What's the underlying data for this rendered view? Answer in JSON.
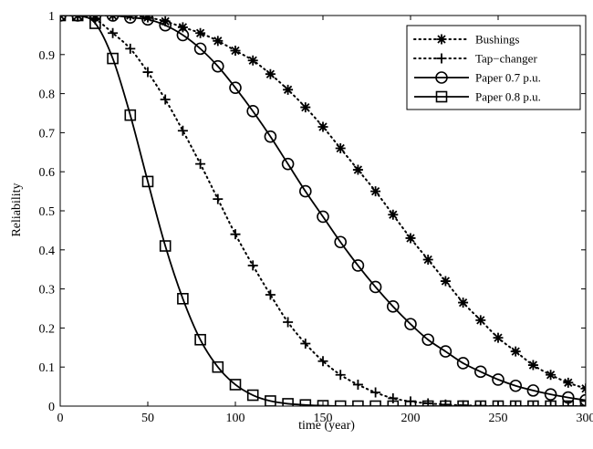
{
  "chart_data": {
    "type": "line",
    "xlabel": "time (year)",
    "ylabel": "Reliability",
    "xlim": [
      0,
      300
    ],
    "ylim": [
      0,
      1
    ],
    "x_ticks": [
      "0",
      "50",
      "100",
      "150",
      "200",
      "250",
      "300"
    ],
    "y_ticks": [
      "0",
      "0.1",
      "0.2",
      "0.3",
      "0.4",
      "0.5",
      "0.6",
      "0.7",
      "0.8",
      "0.9",
      "1"
    ],
    "grid": false,
    "legend_position": "top-right",
    "x": [
      0,
      10,
      20,
      30,
      40,
      50,
      60,
      70,
      80,
      90,
      100,
      110,
      120,
      130,
      140,
      150,
      160,
      170,
      180,
      190,
      200,
      210,
      220,
      230,
      240,
      250,
      260,
      270,
      280,
      290,
      300
    ],
    "series": [
      {
        "name": "Bushings",
        "line_style": "dotted",
        "marker": "asterisk",
        "values": [
          1.0,
          1.0,
          1.0,
          1.0,
          1.0,
          0.995,
          0.985,
          0.97,
          0.955,
          0.935,
          0.91,
          0.885,
          0.85,
          0.81,
          0.765,
          0.715,
          0.66,
          0.605,
          0.55,
          0.49,
          0.43,
          0.375,
          0.32,
          0.265,
          0.22,
          0.175,
          0.14,
          0.105,
          0.08,
          0.06,
          0.045
        ]
      },
      {
        "name": "Tap−changer",
        "line_style": "dotted",
        "marker": "plus",
        "values": [
          1.0,
          1.0,
          0.99,
          0.955,
          0.915,
          0.855,
          0.785,
          0.705,
          0.62,
          0.53,
          0.44,
          0.36,
          0.285,
          0.215,
          0.16,
          0.115,
          0.08,
          0.055,
          0.035,
          0.02,
          0.012,
          0.007,
          0.004,
          0.002,
          0.001,
          0.0,
          0.0,
          0.0,
          0.0,
          0.0,
          0.0
        ]
      },
      {
        "name": "Paper 0.7 p.u.",
        "line_style": "solid",
        "marker": "circle",
        "values": [
          1.0,
          1.0,
          1.0,
          1.0,
          0.995,
          0.99,
          0.975,
          0.95,
          0.915,
          0.87,
          0.815,
          0.755,
          0.69,
          0.62,
          0.55,
          0.485,
          0.42,
          0.36,
          0.305,
          0.255,
          0.21,
          0.17,
          0.14,
          0.11,
          0.088,
          0.068,
          0.052,
          0.04,
          0.03,
          0.022,
          0.015
        ]
      },
      {
        "name": "Paper 0.8 p.u.",
        "line_style": "solid",
        "marker": "square",
        "values": [
          1.0,
          1.0,
          0.98,
          0.89,
          0.745,
          0.575,
          0.41,
          0.275,
          0.17,
          0.1,
          0.055,
          0.028,
          0.013,
          0.006,
          0.003,
          0.001,
          0.0,
          0.0,
          0.0,
          0.0,
          0.0,
          0.0,
          0.0,
          0.0,
          0.0,
          0.0,
          0.0,
          0.0,
          0.0,
          0.0,
          0.0
        ]
      }
    ]
  }
}
